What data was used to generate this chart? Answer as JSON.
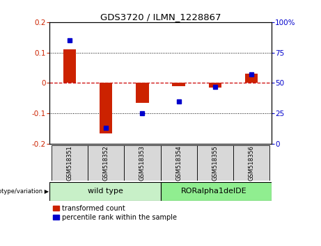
{
  "title": "GDS3720 / ILMN_1228867",
  "samples": [
    "GSM518351",
    "GSM518352",
    "GSM518353",
    "GSM518354",
    "GSM518355",
    "GSM518356"
  ],
  "red_bars": [
    0.11,
    -0.165,
    -0.065,
    -0.01,
    -0.015,
    0.03
  ],
  "blue_pct": [
    85,
    13,
    25,
    35,
    47,
    57
  ],
  "ylim_left": [
    -0.2,
    0.2
  ],
  "ylim_right": [
    0,
    100
  ],
  "yticks_left": [
    -0.2,
    -0.1,
    0.0,
    0.1,
    0.2
  ],
  "yticks_right": [
    0,
    25,
    50,
    75,
    100
  ],
  "ytick_labels_left": [
    "-0.2",
    "-0.1",
    "0",
    "0.1",
    "0.2"
  ],
  "ytick_labels_right": [
    "0",
    "25",
    "50",
    "75",
    "100%"
  ],
  "group_row_label": "genotype/variation",
  "wt_label": "wild type",
  "ror_label": "RORalpha1delDE",
  "wt_color": "#c8f0c8",
  "ror_color": "#90ee90",
  "legend_red": "transformed count",
  "legend_blue": "percentile rank within the sample",
  "red_color": "#cc2200",
  "blue_color": "#0000cc",
  "zero_line_color": "#cc0000",
  "grid_color": "#000000",
  "bar_width": 0.35,
  "label_bg": "#d8d8d8",
  "plot_bg": "#ffffff"
}
